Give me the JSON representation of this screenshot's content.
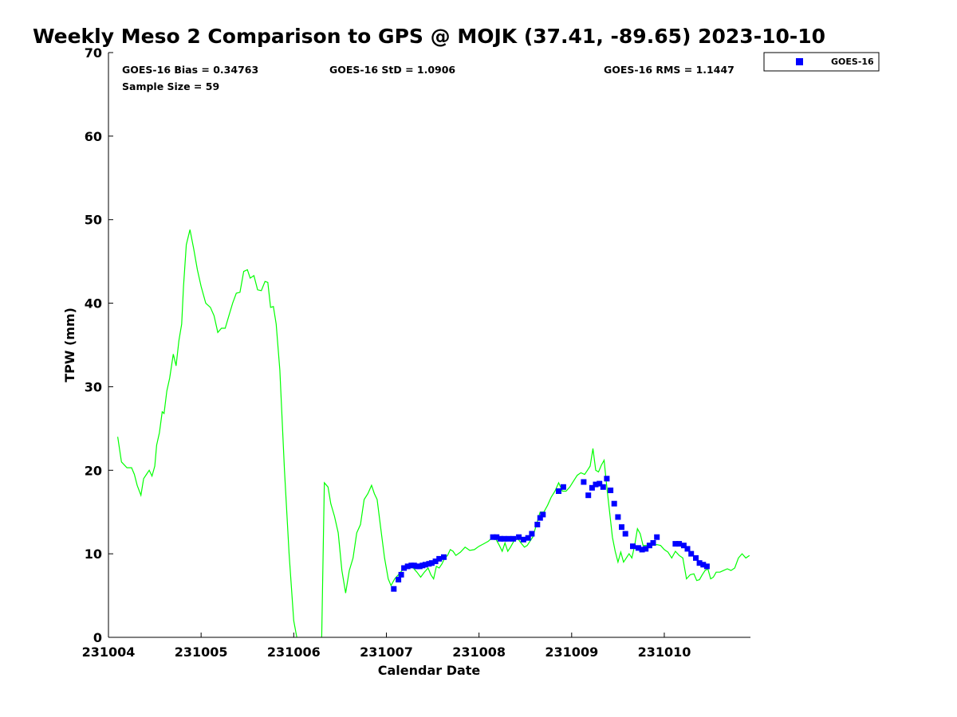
{
  "chart_data": {
    "type": "line",
    "title": "Weekly Meso 2 Comparison to GPS @ MOJK (37.41, -89.65) 2023-10-10",
    "xlabel": "Calendar Date",
    "ylabel": "TPW (mm)",
    "xlim": [
      231004.0,
      231010.93
    ],
    "ylim": [
      0,
      70
    ],
    "x_ticks": [
      231004,
      231005,
      231006,
      231007,
      231008,
      231009,
      231010
    ],
    "x_tick_labels": [
      "231004",
      "231005",
      "231006",
      "231007",
      "231008",
      "231009",
      "231010"
    ],
    "y_ticks": [
      0,
      10,
      20,
      30,
      40,
      50,
      60,
      70
    ],
    "y_tick_labels": [
      "0",
      "10",
      "20",
      "30",
      "40",
      "50",
      "60",
      "70"
    ],
    "grid": false,
    "legend_position": "outside top-right",
    "stats": {
      "bias": "GOES-16 Bias = 0.34763",
      "std": "GOES-16 StD = 1.0906",
      "rms": "GOES-16 RMS = 1.1447",
      "sample": "Sample Size = 59"
    },
    "series": [
      {
        "kind": "line",
        "color": "#00ff00",
        "segments": [
          [
            [
              231004.1,
              24.0
            ],
            [
              231004.14,
              21.0
            ],
            [
              231004.2,
              20.3
            ],
            [
              231004.25,
              20.3
            ],
            [
              231004.28,
              19.5
            ],
            [
              231004.31,
              18.2
            ],
            [
              231004.35,
              17.0
            ],
            [
              231004.38,
              19.0
            ],
            [
              231004.41,
              19.5
            ],
            [
              231004.44,
              20.0
            ],
            [
              231004.47,
              19.3
            ],
            [
              231004.5,
              20.5
            ],
            [
              231004.52,
              23.0
            ],
            [
              231004.55,
              24.5
            ],
            [
              231004.58,
              27.0
            ],
            [
              231004.6,
              26.8
            ],
            [
              231004.63,
              29.5
            ],
            [
              231004.66,
              31.0
            ],
            [
              231004.7,
              33.9
            ],
            [
              231004.73,
              32.5
            ],
            [
              231004.76,
              35.5
            ],
            [
              231004.79,
              37.5
            ],
            [
              231004.81,
              42.0
            ],
            [
              231004.84,
              47.0
            ],
            [
              231004.88,
              48.8
            ],
            [
              231004.92,
              46.5
            ],
            [
              231004.96,
              44.0
            ],
            [
              231005.0,
              42.0
            ],
            [
              231005.05,
              40.0
            ],
            [
              231005.1,
              39.5
            ],
            [
              231005.14,
              38.5
            ],
            [
              231005.18,
              36.5
            ],
            [
              231005.22,
              37.0
            ],
            [
              231005.26,
              37.0
            ],
            [
              231005.3,
              38.5
            ],
            [
              231005.34,
              40.0
            ],
            [
              231005.38,
              41.2
            ],
            [
              231005.42,
              41.3
            ],
            [
              231005.46,
              43.8
            ],
            [
              231005.5,
              44.0
            ],
            [
              231005.53,
              43.0
            ],
            [
              231005.57,
              43.3
            ],
            [
              231005.61,
              41.6
            ],
            [
              231005.65,
              41.5
            ],
            [
              231005.69,
              42.6
            ],
            [
              231005.72,
              42.5
            ],
            [
              231005.75,
              39.5
            ],
            [
              231005.78,
              39.6
            ],
            [
              231005.81,
              37.5
            ],
            [
              231005.85,
              32.0
            ],
            [
              231005.9,
              20.0
            ],
            [
              231005.95,
              10.0
            ],
            [
              231006.0,
              2.0
            ],
            [
              231006.05,
              -1.0
            ]
          ],
          [
            [
              231006.3,
              -1.0
            ],
            [
              231006.33,
              18.5
            ],
            [
              231006.37,
              18.0
            ],
            [
              231006.4,
              16.0
            ],
            [
              231006.44,
              14.5
            ],
            [
              231006.48,
              12.5
            ],
            [
              231006.52,
              8.0
            ],
            [
              231006.56,
              5.3
            ],
            [
              231006.6,
              8.0
            ],
            [
              231006.64,
              9.5
            ],
            [
              231006.68,
              12.5
            ],
            [
              231006.72,
              13.5
            ],
            [
              231006.76,
              16.5
            ],
            [
              231006.8,
              17.2
            ],
            [
              231006.84,
              18.2
            ],
            [
              231006.87,
              17.2
            ],
            [
              231006.9,
              16.5
            ],
            [
              231006.94,
              13.0
            ],
            [
              231006.98,
              9.5
            ],
            [
              231007.02,
              7.0
            ],
            [
              231007.05,
              6.2
            ],
            [
              231007.09,
              7.0
            ],
            [
              231007.13,
              7.5
            ],
            [
              231007.17,
              8.0
            ],
            [
              231007.21,
              8.3
            ],
            [
              231007.25,
              8.6
            ],
            [
              231007.29,
              8.3
            ],
            [
              231007.33,
              7.8
            ],
            [
              231007.37,
              7.2
            ],
            [
              231007.41,
              7.8
            ],
            [
              231007.45,
              8.3
            ],
            [
              231007.48,
              7.5
            ],
            [
              231007.51,
              7.0
            ],
            [
              231007.54,
              8.5
            ],
            [
              231007.57,
              8.3
            ],
            [
              231007.6,
              8.8
            ],
            [
              231007.63,
              9.5
            ],
            [
              231007.66,
              9.8
            ],
            [
              231007.69,
              10.5
            ],
            [
              231007.72,
              10.3
            ],
            [
              231007.75,
              9.8
            ],
            [
              231007.8,
              10.2
            ],
            [
              231007.85,
              10.8
            ],
            [
              231007.9,
              10.4
            ],
            [
              231007.95,
              10.5
            ],
            [
              231008.0,
              10.9
            ],
            [
              231008.05,
              11.2
            ],
            [
              231008.1,
              11.5
            ],
            [
              231008.14,
              11.9
            ],
            [
              231008.18,
              11.8
            ],
            [
              231008.22,
              11.0
            ],
            [
              231008.25,
              10.3
            ],
            [
              231008.28,
              11.3
            ],
            [
              231008.31,
              10.3
            ],
            [
              231008.34,
              10.8
            ],
            [
              231008.38,
              11.6
            ],
            [
              231008.42,
              11.8
            ],
            [
              231008.46,
              11.2
            ],
            [
              231008.49,
              10.8
            ],
            [
              231008.52,
              11.0
            ],
            [
              231008.55,
              11.5
            ],
            [
              231008.58,
              12.0
            ],
            [
              231008.62,
              13.5
            ],
            [
              231008.66,
              15.0
            ],
            [
              231008.7,
              15.0
            ],
            [
              231008.74,
              15.8
            ],
            [
              231008.78,
              16.8
            ],
            [
              231008.82,
              17.5
            ],
            [
              231008.86,
              18.5
            ],
            [
              231008.9,
              17.5
            ],
            [
              231008.94,
              17.5
            ],
            [
              231008.98,
              18.0
            ],
            [
              231009.02,
              18.7
            ],
            [
              231009.06,
              19.4
            ],
            [
              231009.1,
              19.7
            ],
            [
              231009.14,
              19.5
            ],
            [
              231009.17,
              20.0
            ],
            [
              231009.2,
              20.5
            ],
            [
              231009.23,
              22.6
            ],
            [
              231009.26,
              20.0
            ],
            [
              231009.29,
              19.8
            ],
            [
              231009.32,
              20.6
            ],
            [
              231009.35,
              21.2
            ],
            [
              231009.38,
              18.0
            ],
            [
              231009.41,
              15.0
            ],
            [
              231009.44,
              12.0
            ],
            [
              231009.47,
              10.3
            ],
            [
              231009.5,
              9.0
            ],
            [
              231009.53,
              10.2
            ],
            [
              231009.56,
              9.0
            ],
            [
              231009.59,
              9.5
            ],
            [
              231009.62,
              10.0
            ],
            [
              231009.65,
              9.5
            ],
            [
              231009.68,
              11.0
            ],
            [
              231009.71,
              13.0
            ],
            [
              231009.74,
              12.4
            ],
            [
              231009.77,
              11.0
            ],
            [
              231009.82,
              11.0
            ],
            [
              231009.87,
              11.0
            ],
            [
              231009.92,
              11.1
            ],
            [
              231009.96,
              11.0
            ],
            [
              231010.0,
              10.5
            ],
            [
              231010.04,
              10.2
            ],
            [
              231010.08,
              9.5
            ],
            [
              231010.12,
              10.3
            ],
            [
              231010.16,
              9.8
            ],
            [
              231010.2,
              9.5
            ],
            [
              231010.24,
              7.0
            ],
            [
              231010.28,
              7.5
            ],
            [
              231010.32,
              7.6
            ],
            [
              231010.35,
              6.8
            ],
            [
              231010.38,
              6.9
            ],
            [
              231010.41,
              7.5
            ],
            [
              231010.44,
              8.0
            ],
            [
              231010.47,
              8.2
            ],
            [
              231010.5,
              7.0
            ],
            [
              231010.53,
              7.2
            ],
            [
              231010.56,
              7.8
            ],
            [
              231010.6,
              7.8
            ],
            [
              231010.64,
              8.0
            ],
            [
              231010.68,
              8.2
            ],
            [
              231010.72,
              8.0
            ],
            [
              231010.76,
              8.3
            ],
            [
              231010.8,
              9.5
            ],
            [
              231010.84,
              10.0
            ],
            [
              231010.88,
              9.5
            ],
            [
              231010.92,
              9.8
            ]
          ]
        ]
      },
      {
        "kind": "scatter",
        "name": "GOES-16",
        "color": "#0000ff",
        "marker": "square",
        "points": [
          [
            231007.08,
            5.8
          ],
          [
            231007.13,
            6.9
          ],
          [
            231007.16,
            7.5
          ],
          [
            231007.19,
            8.3
          ],
          [
            231007.23,
            8.5
          ],
          [
            231007.27,
            8.6
          ],
          [
            231007.3,
            8.6
          ],
          [
            231007.33,
            8.5
          ],
          [
            231007.36,
            8.5
          ],
          [
            231007.39,
            8.6
          ],
          [
            231007.42,
            8.7
          ],
          [
            231007.46,
            8.8
          ],
          [
            231007.49,
            8.9
          ],
          [
            231007.53,
            9.1
          ],
          [
            231007.57,
            9.4
          ],
          [
            231007.62,
            9.6
          ],
          [
            231008.15,
            12.0
          ],
          [
            231008.19,
            12.0
          ],
          [
            231008.23,
            11.8
          ],
          [
            231008.27,
            11.8
          ],
          [
            231008.32,
            11.8
          ],
          [
            231008.37,
            11.8
          ],
          [
            231008.43,
            12.0
          ],
          [
            231008.48,
            11.7
          ],
          [
            231008.53,
            11.9
          ],
          [
            231008.57,
            12.4
          ],
          [
            231008.63,
            13.5
          ],
          [
            231008.66,
            14.3
          ],
          [
            231008.69,
            14.7
          ],
          [
            231008.86,
            17.5
          ],
          [
            231008.91,
            18.0
          ],
          [
            231009.13,
            18.6
          ],
          [
            231009.18,
            17.0
          ],
          [
            231009.22,
            17.9
          ],
          [
            231009.26,
            18.3
          ],
          [
            231009.3,
            18.4
          ],
          [
            231009.34,
            18.0
          ],
          [
            231009.38,
            19.0
          ],
          [
            231009.42,
            17.6
          ],
          [
            231009.46,
            16.0
          ],
          [
            231009.5,
            14.4
          ],
          [
            231009.54,
            13.2
          ],
          [
            231009.58,
            12.4
          ],
          [
            231009.66,
            10.9
          ],
          [
            231009.72,
            10.7
          ],
          [
            231009.76,
            10.5
          ],
          [
            231009.8,
            10.6
          ],
          [
            231009.84,
            11.0
          ],
          [
            231009.88,
            11.3
          ],
          [
            231009.92,
            12.0
          ],
          [
            231010.12,
            11.2
          ],
          [
            231010.16,
            11.2
          ],
          [
            231010.21,
            11.0
          ],
          [
            231010.25,
            10.6
          ],
          [
            231010.29,
            10.0
          ],
          [
            231010.34,
            9.5
          ],
          [
            231010.38,
            8.9
          ],
          [
            231010.42,
            8.7
          ],
          [
            231010.46,
            8.5
          ]
        ]
      }
    ]
  }
}
